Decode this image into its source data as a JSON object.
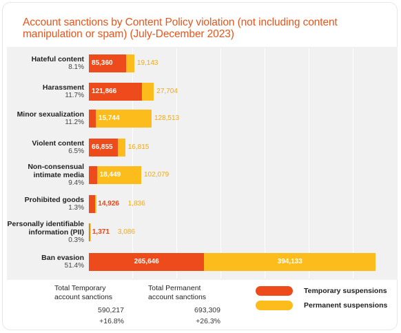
{
  "chart_data": {
    "type": "bar",
    "orientation": "horizontal",
    "stacked": true,
    "title": "Account sanctions by Content Policy violation (not including content manipulation or spam)  (July-December 2023)",
    "categories": [
      "Hateful content",
      "Harassment",
      "Minor sexualization",
      "Violent content",
      "Non-consensual\nintimate media",
      "Prohibited goods",
      "Personally identifiable\ninformation (PII)",
      "Ban evasion"
    ],
    "percentages": [
      "8.1%",
      "11.7%",
      "11.2%",
      "6.5%",
      "9.4%",
      "1.3%",
      "0.3%",
      "51.4%"
    ],
    "series": [
      {
        "name": "Temporary suspensions",
        "color": "#ee4b1c",
        "values": [
          85360,
          121866,
          15744,
          66855,
          18449,
          14926,
          1371,
          265646
        ],
        "labels": [
          "85,360",
          "121,866",
          "15,744",
          "66,855",
          "18,449",
          "14,926",
          "1,371",
          "265,646"
        ]
      },
      {
        "name": "Permanent suspensions",
        "color": "#fcbd1c",
        "values": [
          19143,
          27704,
          128513,
          16815,
          102079,
          1836,
          3086,
          394133
        ],
        "labels": [
          "19,143",
          "27,704",
          "128,513",
          "16,815",
          "102,079",
          "1,836",
          "3,086",
          "394,133"
        ]
      }
    ],
    "xlim": [
      0,
      720000
    ],
    "grid": true,
    "legend_position": "bottom-right"
  },
  "totals": {
    "temporary": {
      "label": "Total Temporary\naccount sanctions",
      "value": "590,217",
      "change": "+16.8%"
    },
    "permanent": {
      "label": "Total Permanent\naccount sanctions",
      "value": "693,309",
      "change": "+26.3%"
    }
  },
  "legend": [
    {
      "label": "Temporary suspensions",
      "color": "#ee4b1c"
    },
    {
      "label": "Permanent suspensions",
      "color": "#fcbd1c"
    }
  ]
}
